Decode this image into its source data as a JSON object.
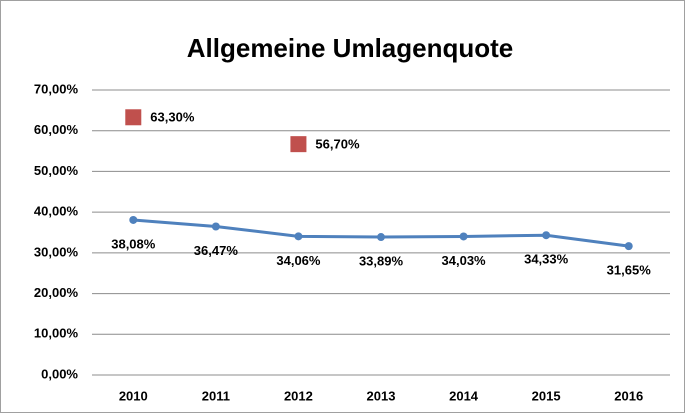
{
  "chart_data": {
    "type": "line",
    "title": "Allgemeine Umlagenquote",
    "categories": [
      "2010",
      "2011",
      "2012",
      "2013",
      "2014",
      "2015",
      "2016"
    ],
    "series": [
      {
        "color": "#4f81bd",
        "marker": "circle",
        "values": [
          38.08,
          36.47,
          34.06,
          33.89,
          34.03,
          34.33,
          31.65
        ],
        "value_labels": [
          "38,08%",
          "36,47%",
          "34,06%",
          "33,89%",
          "34,03%",
          "34,33%",
          "31,65%"
        ]
      },
      {
        "color": "#c0504d",
        "marker": "square",
        "line": false,
        "values": [
          63.3,
          null,
          56.7,
          null,
          null,
          null,
          null
        ],
        "value_labels": [
          "63,30%",
          null,
          "56,70%",
          null,
          null,
          null,
          null
        ]
      }
    ],
    "ylim": [
      0,
      70
    ],
    "yticks": [
      {
        "value": 0,
        "label": "0,00%"
      },
      {
        "value": 10,
        "label": "10,00%"
      },
      {
        "value": 20,
        "label": "20,00%"
      },
      {
        "value": 30,
        "label": "30,00%"
      },
      {
        "value": 40,
        "label": "40,00%"
      },
      {
        "value": 50,
        "label": "50,00%"
      },
      {
        "value": 60,
        "label": "60,00%"
      },
      {
        "value": 70,
        "label": "70,00%"
      }
    ],
    "grid": true
  }
}
